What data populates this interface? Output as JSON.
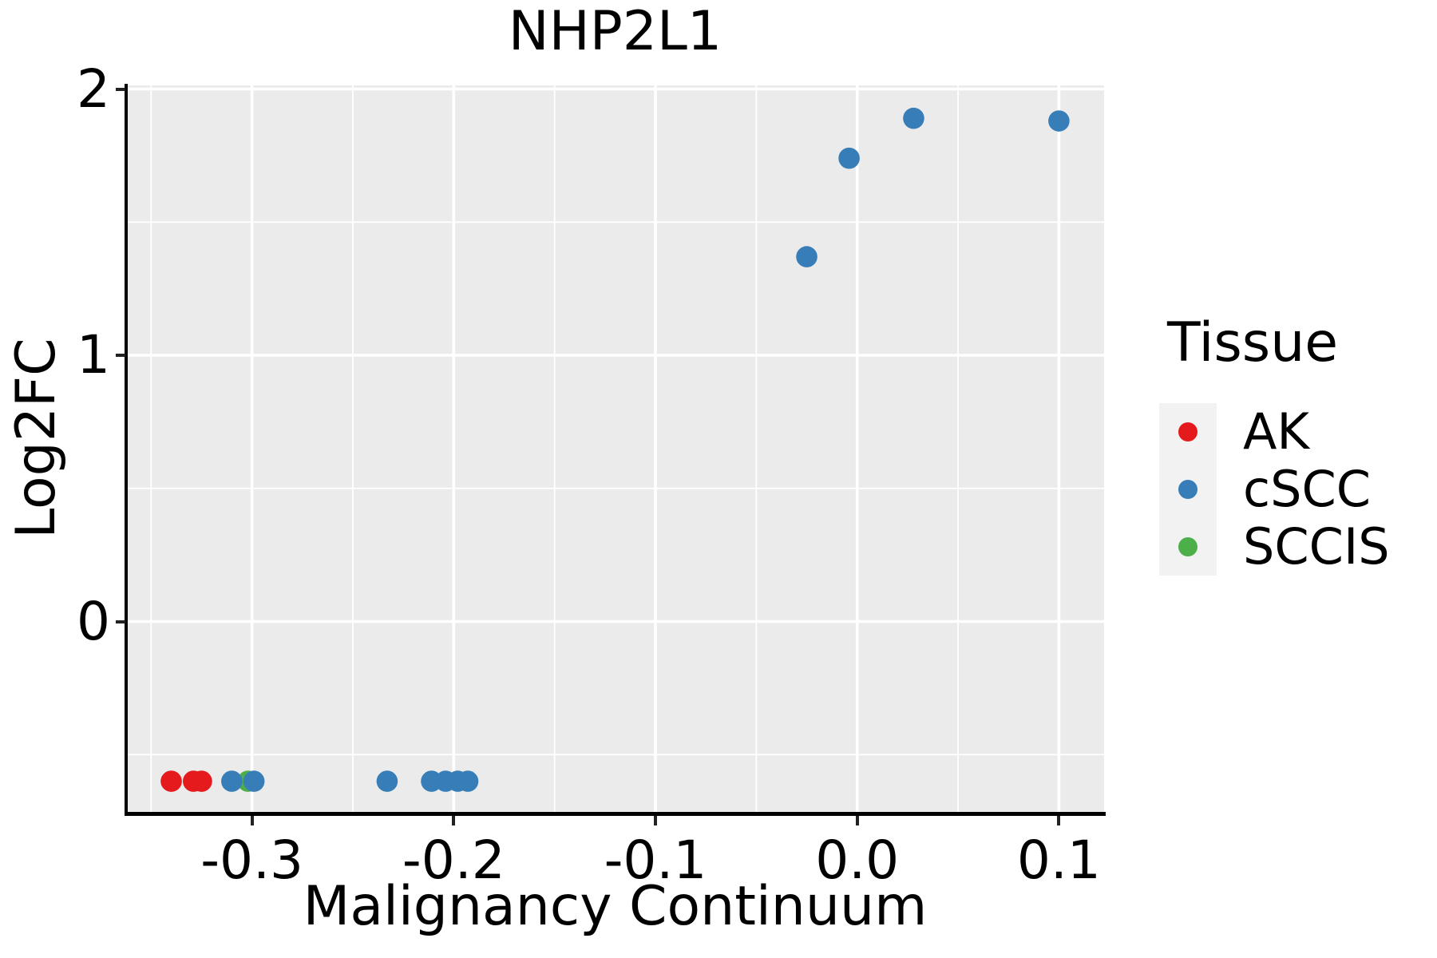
{
  "title": "NHP2L1",
  "axes": {
    "x": {
      "label": "Malignancy Continuum",
      "tick_values": [
        -0.3,
        -0.2,
        -0.1,
        0.0,
        0.1
      ],
      "tick_labels": [
        "-0.3",
        "-0.2",
        "-0.1",
        "0.0",
        "0.1"
      ],
      "minor_tick_values": [
        -0.35,
        -0.25,
        -0.15,
        -0.05,
        0.05
      ],
      "range": [
        -0.3624,
        0.1224
      ]
    },
    "y": {
      "label": "Log2FC",
      "tick_values": [
        0,
        1,
        2
      ],
      "tick_labels": [
        "0",
        "1",
        "2"
      ],
      "minor_tick_values": [
        -0.5,
        0.5,
        1.5
      ],
      "range": [
        -0.724,
        2.014
      ]
    }
  },
  "legend": {
    "title": "Tissue",
    "items": [
      {
        "label": "AK",
        "color": "#E41A1C"
      },
      {
        "label": "cSCC",
        "color": "#377EB8"
      },
      {
        "label": "SCCIS",
        "color": "#4DAF4A"
      }
    ]
  },
  "colors": {
    "panel_background": "#EBEBEB",
    "gridline": "#FFFFFF",
    "legend_key_background": "#F2F2F2",
    "axis_line": "#000000",
    "tick_mark": "#222222"
  },
  "chart_data": {
    "type": "scatter",
    "title": "NHP2L1",
    "xlabel": "Malignancy Continuum",
    "ylabel": "Log2FC",
    "xlim": [
      -0.3624,
      0.1224
    ],
    "ylim": [
      -0.724,
      2.014
    ],
    "grid": true,
    "legend_position": "right",
    "point_radius_px": 13.3,
    "series": [
      {
        "name": "AK",
        "color": "#E41A1C",
        "points": [
          [
            -0.34,
            -0.6
          ],
          [
            -0.329,
            -0.6
          ],
          [
            -0.325,
            -0.6
          ]
        ]
      },
      {
        "name": "SCCIS",
        "color": "#4DAF4A",
        "points": [
          [
            -0.302,
            -0.6
          ]
        ]
      },
      {
        "name": "cSCC",
        "color": "#377EB8",
        "points": [
          [
            -0.31,
            -0.6
          ],
          [
            -0.299,
            -0.6
          ],
          [
            -0.233,
            -0.6
          ],
          [
            -0.211,
            -0.6
          ],
          [
            -0.204,
            -0.6
          ],
          [
            -0.198,
            -0.6
          ],
          [
            -0.193,
            -0.6
          ],
          [
            -0.025,
            1.37
          ],
          [
            -0.004,
            1.74
          ],
          [
            0.028,
            1.89
          ],
          [
            0.1,
            1.88
          ]
        ]
      }
    ]
  }
}
